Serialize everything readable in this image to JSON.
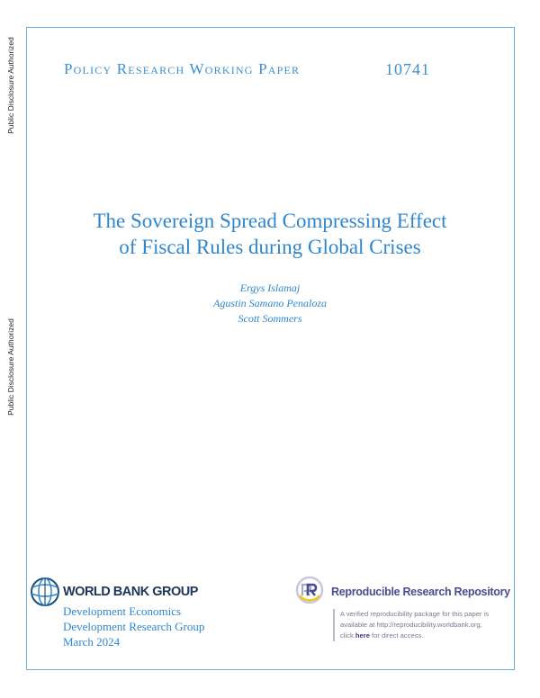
{
  "side_labels": [
    "Public Disclosure Authorized",
    "Public Disclosure Authorized"
  ],
  "header": {
    "series": "Policy Research Working Paper",
    "number": "10741"
  },
  "title_lines": [
    "The Sovereign Spread Compressing Effect",
    "of Fiscal Rules during Global Crises"
  ],
  "authors": [
    "Ergys Islamaj",
    "Agustin Samano Penaloza",
    "Scott Sommers"
  ],
  "publisher": {
    "name": "WORLD BANK GROUP",
    "lines": [
      "Development Economics",
      "Development Research Group",
      "March 2024"
    ]
  },
  "repository": {
    "name": "Reproducible Research Repository",
    "text_1": "A verified reproducibility package for this paper is",
    "text_2": "available at http://reproducibility.worldbank.org,",
    "text_3a": "click ",
    "link": "here",
    "text_3b": " for direct access."
  },
  "colors": {
    "accent": "#2f86cc",
    "frame": "#6aaee0",
    "wb_navy": "#1d3557",
    "rrr_purple": "#4b4b8f"
  }
}
